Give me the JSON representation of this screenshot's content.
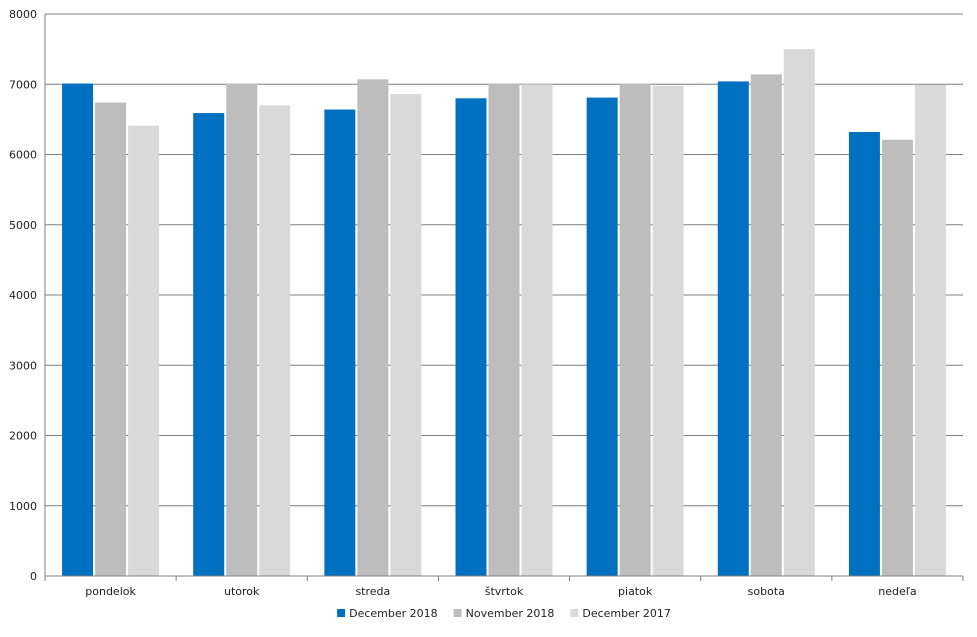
{
  "chart_data": {
    "type": "bar",
    "categories": [
      "pondelok",
      "utorok",
      "streda",
      "štvrtok",
      "piatok",
      "sobota",
      "nedeľa"
    ],
    "series": [
      {
        "name": "December 2018",
        "color": "#0070c0",
        "values": [
          7010,
          6590,
          6640,
          6800,
          6810,
          7040,
          6320
        ]
      },
      {
        "name": "November 2018",
        "color": "#bdbdbd",
        "values": [
          6740,
          7010,
          7070,
          7010,
          7010,
          7140,
          6210
        ]
      },
      {
        "name": "December 2017",
        "color": "#d9d9d9",
        "values": [
          6410,
          6700,
          6860,
          7000,
          6980,
          7500,
          6990
        ]
      }
    ],
    "ylim": [
      0,
      8000
    ],
    "yticks": [
      0,
      1000,
      2000,
      3000,
      4000,
      5000,
      6000,
      7000,
      8000
    ],
    "grid": true,
    "legend_position": "bottom"
  }
}
